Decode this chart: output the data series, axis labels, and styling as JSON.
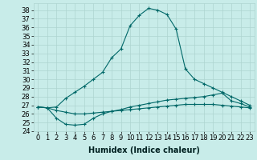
{
  "xlabel": "Humidex (Indice chaleur)",
  "ylabel": "",
  "bg_color": "#c8ece9",
  "grid_color": "#aed4d0",
  "line_color": "#006868",
  "xlim": [
    -0.5,
    23.5
  ],
  "ylim": [
    24,
    38.8
  ],
  "yticks": [
    24,
    25,
    26,
    27,
    28,
    29,
    30,
    31,
    32,
    33,
    34,
    35,
    36,
    37,
    38
  ],
  "xticks": [
    0,
    1,
    2,
    3,
    4,
    5,
    6,
    7,
    8,
    9,
    10,
    11,
    12,
    13,
    14,
    15,
    16,
    17,
    18,
    19,
    20,
    21,
    22,
    23
  ],
  "line1_x": [
    0,
    1,
    2,
    3,
    4,
    5,
    6,
    7,
    8,
    9,
    10,
    11,
    12,
    13,
    14,
    15,
    16,
    17,
    18,
    19,
    20,
    21,
    22,
    23
  ],
  "line1_y": [
    26.8,
    26.7,
    26.8,
    27.8,
    28.5,
    29.2,
    30.0,
    30.8,
    32.5,
    33.5,
    36.2,
    37.4,
    38.2,
    38.0,
    37.5,
    35.8,
    31.2,
    30.0,
    29.5,
    29.0,
    28.5,
    28.0,
    27.5,
    27.0
  ],
  "line2_x": [
    0,
    1,
    2,
    3,
    4,
    5,
    6,
    7,
    8,
    9,
    10,
    11,
    12,
    13,
    14,
    15,
    16,
    17,
    18,
    19,
    20,
    21,
    22,
    23
  ],
  "line2_y": [
    26.8,
    26.7,
    25.5,
    24.8,
    24.7,
    24.8,
    25.5,
    26.0,
    26.3,
    26.5,
    26.8,
    27.0,
    27.2,
    27.4,
    27.6,
    27.7,
    27.8,
    27.9,
    28.0,
    28.2,
    28.4,
    27.5,
    27.2,
    26.8
  ],
  "line3_x": [
    0,
    1,
    2,
    3,
    4,
    5,
    6,
    7,
    8,
    9,
    10,
    11,
    12,
    13,
    14,
    15,
    16,
    17,
    18,
    19,
    20,
    21,
    22,
    23
  ],
  "line3_y": [
    26.8,
    26.7,
    26.4,
    26.2,
    26.0,
    26.0,
    26.1,
    26.2,
    26.3,
    26.4,
    26.5,
    26.6,
    26.7,
    26.8,
    26.9,
    27.0,
    27.1,
    27.1,
    27.1,
    27.1,
    27.0,
    26.9,
    26.8,
    26.7
  ],
  "font_size": 6,
  "xlabel_fontsize": 7
}
